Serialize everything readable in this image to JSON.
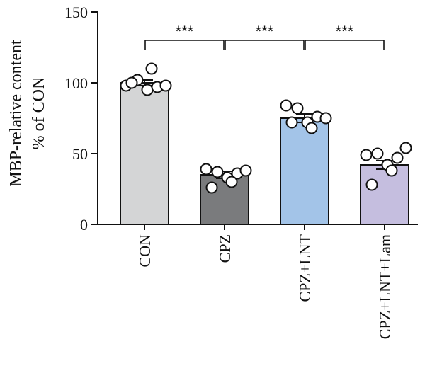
{
  "chart_data": {
    "type": "bar",
    "ylabel_line1": "MBP-relative content",
    "ylabel_line2": "% of CON",
    "ylim": [
      0,
      150
    ],
    "yticks": [
      "0",
      "50",
      "100",
      "150"
    ],
    "categories": [
      "CON",
      "CPZ",
      "CPZ+LNT",
      "CPZ+LNT+Lam"
    ],
    "values": [
      100,
      35,
      75,
      42
    ],
    "sem": [
      2,
      2.5,
      3,
      3
    ],
    "points": [
      [
        98,
        102,
        95,
        97,
        98,
        110,
        100
      ],
      [
        39,
        37,
        33,
        36,
        38,
        30,
        26
      ],
      [
        84,
        82,
        72,
        76,
        75,
        68,
        72
      ],
      [
        49,
        50,
        42,
        47,
        54,
        38,
        28
      ]
    ],
    "bar_colors": [
      "#d4d5d6",
      "#7a7b7d",
      "#a3c4e8",
      "#c5bedf"
    ],
    "significance": [
      {
        "from": 0,
        "to": 1,
        "label": "***"
      },
      {
        "from": 1,
        "to": 2,
        "label": "***"
      },
      {
        "from": 2,
        "to": 3,
        "label": "***"
      }
    ]
  }
}
